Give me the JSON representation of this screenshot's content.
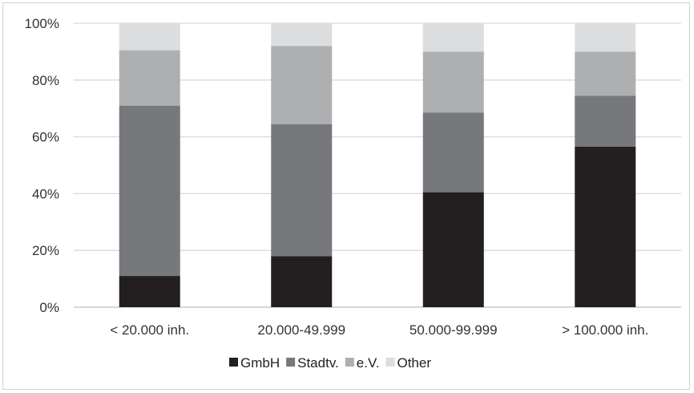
{
  "chart_data": {
    "type": "bar",
    "stacked": true,
    "categories": [
      "< 20.000 inh.",
      "20.000-49.999",
      "50.000-99.999",
      "> 100.000 inh."
    ],
    "series": [
      {
        "name": "GmbH",
        "color": "#231f20",
        "values": [
          11,
          18,
          40.5,
          56.5
        ]
      },
      {
        "name": "Stadtv.",
        "color": "#77787b",
        "values": [
          60,
          46.5,
          28,
          18
        ]
      },
      {
        "name": "e.V.",
        "color": "#aeafb1",
        "values": [
          19.5,
          27.5,
          21.5,
          15.5
        ]
      },
      {
        "name": "Other",
        "color": "#dcddde",
        "values": [
          9.5,
          8,
          10,
          10
        ]
      }
    ],
    "ylim": [
      0,
      100
    ],
    "yticks": [
      "0%",
      "20%",
      "40%",
      "60%",
      "80%",
      "100%"
    ],
    "grid": true,
    "legend_position": "bottom"
  }
}
